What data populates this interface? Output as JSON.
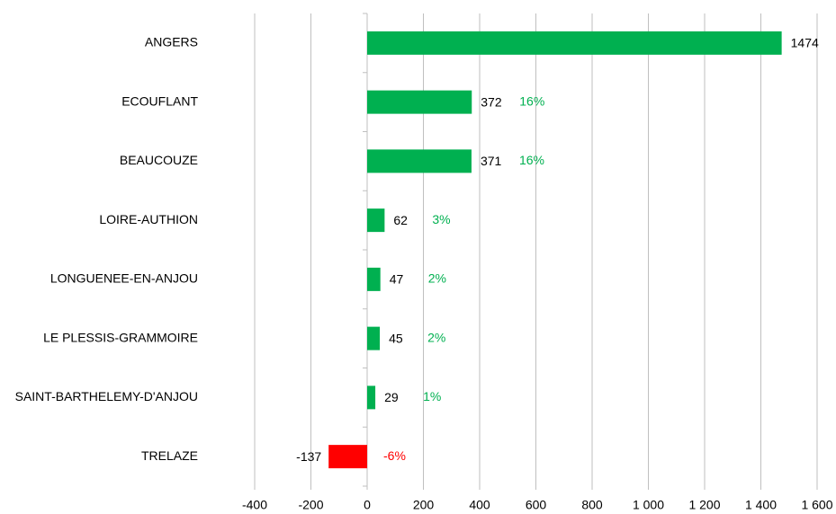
{
  "chart_data": {
    "type": "bar",
    "orientation": "horizontal",
    "categories": [
      "ANGERS",
      "ECOUFLANT",
      "BEAUCOUZE",
      "LOIRE-AUTHION",
      "LONGUENEE-EN-ANJOU",
      "LE PLESSIS-GRAMMOIRE",
      "SAINT-BARTHELEMY-D'ANJOU",
      "TRELAZE"
    ],
    "values": [
      1474,
      372,
      371,
      62,
      47,
      45,
      29,
      -137
    ],
    "share_labels": [
      null,
      "16%",
      "16%",
      "3%",
      "2%",
      "2%",
      "1%",
      "-6%"
    ],
    "color": "#00b050",
    "negative_color": "#ff0000",
    "xlim": [
      -400,
      1600
    ],
    "xticks": [
      -400,
      -200,
      0,
      200,
      400,
      600,
      800,
      {
        "value": 1000,
        "label": "1 000"
      },
      {
        "value": 1200,
        "label": "1 200"
      },
      {
        "value": 1400,
        "label": "1 400"
      },
      {
        "value": 1600,
        "label": "1 600"
      }
    ],
    "grid": true
  }
}
